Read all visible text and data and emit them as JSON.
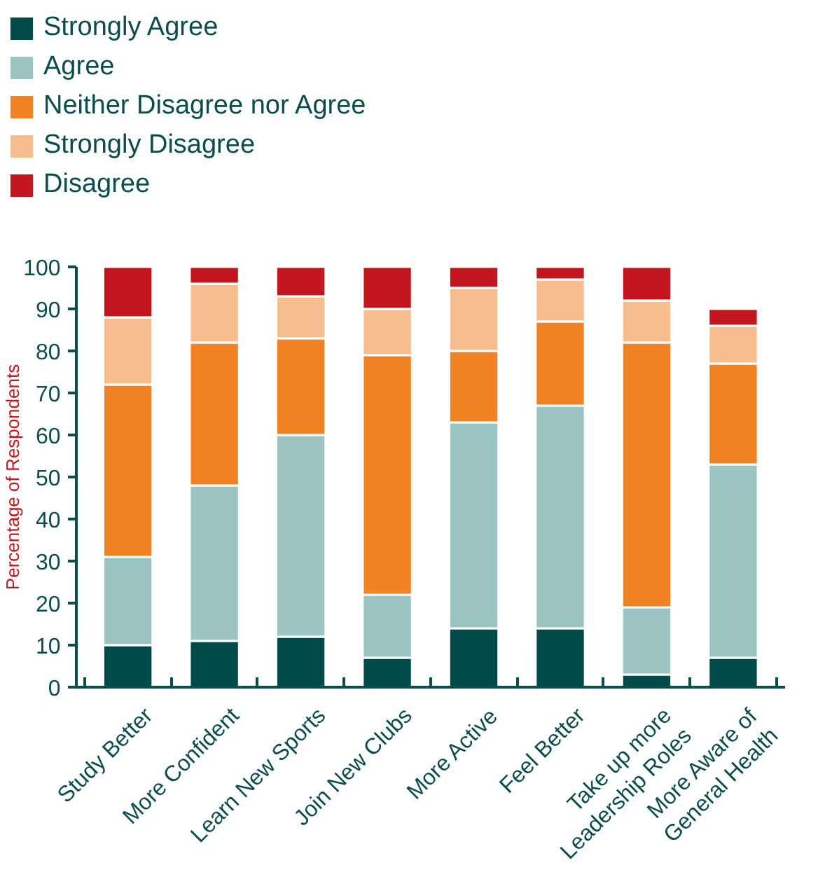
{
  "chart_data": {
    "type": "bar",
    "stacked": true,
    "ylabel": "Percentage of Respondents",
    "categories": [
      "Study Better",
      "More Confident",
      "Learn New Sports",
      "Join New Clubs",
      "More Active",
      "Feel Better",
      "Take up more\nLeadership Roles",
      "More Aware of\nGeneral Health"
    ],
    "series": [
      {
        "name": "Strongly Agree",
        "color": "#004a4a",
        "values": [
          10,
          11,
          12,
          7,
          14,
          14,
          3,
          7
        ]
      },
      {
        "name": "Agree",
        "color": "#9bc4c3",
        "values": [
          21,
          37,
          48,
          15,
          49,
          53,
          16,
          46
        ]
      },
      {
        "name": "Neither Disagree nor Agree",
        "color": "#f08222",
        "values": [
          41,
          34,
          23,
          57,
          17,
          20,
          63,
          24
        ]
      },
      {
        "name": "Strongly Disagree",
        "color": "#f7bd8f",
        "values": [
          16,
          14,
          10,
          11,
          15,
          10,
          10,
          9
        ]
      },
      {
        "name": "Disagree",
        "color": "#c4161f",
        "values": [
          12,
          4,
          7,
          10,
          5,
          3,
          8,
          4
        ]
      }
    ],
    "ylim": [
      0,
      100
    ],
    "yticks": [
      0,
      10,
      20,
      30,
      40,
      50,
      60,
      70,
      80,
      90,
      100
    ],
    "grid": false,
    "legend": "top left"
  }
}
